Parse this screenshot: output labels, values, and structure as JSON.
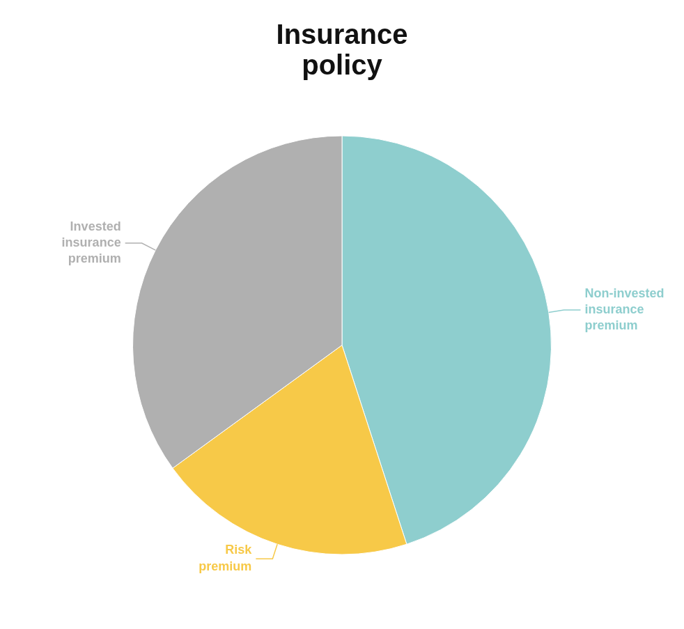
{
  "chart_data": {
    "type": "pie",
    "title": "Insurance\npolicy",
    "categories": [
      "Non-invested\ninsurance\npremium",
      "Risk\npremium",
      "Invested\ninsurance\npremium"
    ],
    "values": [
      45,
      20,
      35
    ],
    "colors": [
      "#8ECECE",
      "#F7C948",
      "#B0B0B0"
    ]
  }
}
